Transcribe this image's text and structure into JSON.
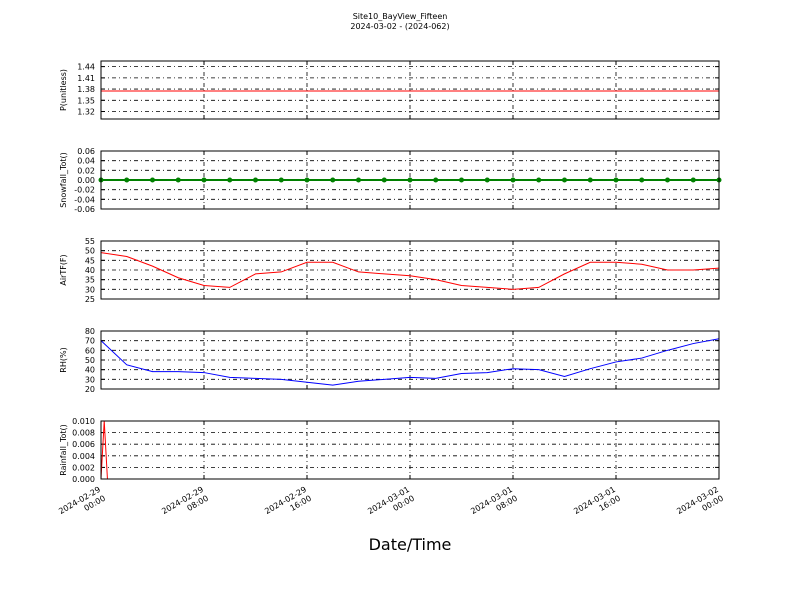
{
  "chart_data": [
    {
      "type": "line",
      "title": "Site10_BayView_Fifteen",
      "subtitle": "2024-03-02 - (2024-062)",
      "y_label": "P(unitless)",
      "color": "#ff0000",
      "grid": true,
      "x": [
        "2024-02-29 00:00",
        "2024-02-29 02:00",
        "2024-02-29 04:00",
        "2024-02-29 06:00",
        "2024-02-29 08:00",
        "2024-02-29 10:00",
        "2024-02-29 12:00",
        "2024-02-29 14:00",
        "2024-02-29 16:00",
        "2024-02-29 18:00",
        "2024-02-29 20:00",
        "2024-02-29 22:00",
        "2024-03-01 00:00",
        "2024-03-01 02:00",
        "2024-03-01 04:00",
        "2024-03-01 06:00",
        "2024-03-01 08:00",
        "2024-03-01 10:00",
        "2024-03-01 12:00",
        "2024-03-01 14:00",
        "2024-03-01 16:00",
        "2024-03-01 18:00",
        "2024-03-01 20:00",
        "2024-03-01 22:00",
        "2024-03-02 00:00"
      ],
      "values": [
        1.375,
        1.375,
        1.375,
        1.375,
        1.375,
        1.375,
        1.375,
        1.375,
        1.375,
        1.375,
        1.375,
        1.375,
        1.375,
        1.375,
        1.375,
        1.375,
        1.375,
        1.375,
        1.375,
        1.375,
        1.375,
        1.375,
        1.375,
        1.375,
        1.375
      ],
      "xlim": [
        "2024-02-29 00:00",
        "2024-03-02 00:00"
      ],
      "xticks": [
        "2024-02-29 00:00",
        "2024-02-29 08:00",
        "2024-02-29 16:00",
        "2024-03-01 00:00",
        "2024-03-01 08:00",
        "2024-03-01 16:00",
        "2024-03-02 00:00"
      ],
      "ylim": [
        1.3,
        1.455
      ],
      "yticks": [
        1.32,
        1.35,
        1.38,
        1.41,
        1.44
      ]
    },
    {
      "type": "line",
      "y_label": "Snowfall_Tot()",
      "color": "#008000",
      "marker": "o",
      "grid": true,
      "x": [
        "2024-02-29 00:00",
        "2024-02-29 02:00",
        "2024-02-29 04:00",
        "2024-02-29 06:00",
        "2024-02-29 08:00",
        "2024-02-29 10:00",
        "2024-02-29 12:00",
        "2024-02-29 14:00",
        "2024-02-29 16:00",
        "2024-02-29 18:00",
        "2024-02-29 20:00",
        "2024-02-29 22:00",
        "2024-03-01 00:00",
        "2024-03-01 02:00",
        "2024-03-01 04:00",
        "2024-03-01 06:00",
        "2024-03-01 08:00",
        "2024-03-01 10:00",
        "2024-03-01 12:00",
        "2024-03-01 14:00",
        "2024-03-01 16:00",
        "2024-03-01 18:00",
        "2024-03-01 20:00",
        "2024-03-01 22:00",
        "2024-03-02 00:00"
      ],
      "values": [
        0,
        0,
        0,
        0,
        0,
        0,
        0,
        0,
        0,
        0,
        0,
        0,
        0,
        0,
        0,
        0,
        0,
        0,
        0,
        0,
        0,
        0,
        0,
        0,
        0
      ],
      "xlim": [
        "2024-02-29 00:00",
        "2024-03-02 00:00"
      ],
      "xticks": [
        "2024-02-29 00:00",
        "2024-02-29 08:00",
        "2024-02-29 16:00",
        "2024-03-01 00:00",
        "2024-03-01 08:00",
        "2024-03-01 16:00",
        "2024-03-02 00:00"
      ],
      "ylim": [
        -0.06,
        0.06
      ],
      "yticks": [
        -0.06,
        -0.04,
        -0.02,
        {
          "value": 0,
          "label": "0.00"
        },
        0.02,
        0.04,
        0.06
      ]
    },
    {
      "type": "line",
      "y_label": "AirTF(F)",
      "color": "#ff0000",
      "grid": true,
      "x": [
        "2024-02-29 00:00",
        "2024-02-29 02:00",
        "2024-02-29 04:00",
        "2024-02-29 06:00",
        "2024-02-29 08:00",
        "2024-02-29 10:00",
        "2024-02-29 12:00",
        "2024-02-29 14:00",
        "2024-02-29 16:00",
        "2024-02-29 18:00",
        "2024-02-29 20:00",
        "2024-02-29 22:00",
        "2024-03-01 00:00",
        "2024-03-01 02:00",
        "2024-03-01 04:00",
        "2024-03-01 06:00",
        "2024-03-01 08:00",
        "2024-03-01 10:00",
        "2024-03-01 12:00",
        "2024-03-01 14:00",
        "2024-03-01 16:00",
        "2024-03-01 18:00",
        "2024-03-01 20:00",
        "2024-03-01 22:00",
        "2024-03-02 00:00"
      ],
      "values": [
        49,
        47,
        42,
        36,
        32,
        31,
        38,
        39,
        44,
        44,
        39,
        38,
        37,
        35,
        32,
        31,
        30,
        31,
        38,
        44,
        44,
        43,
        40,
        40,
        41
      ],
      "xlim": [
        "2024-02-29 00:00",
        "2024-03-02 00:00"
      ],
      "xticks": [
        "2024-02-29 00:00",
        "2024-02-29 08:00",
        "2024-02-29 16:00",
        "2024-03-01 00:00",
        "2024-03-01 08:00",
        "2024-03-01 16:00",
        "2024-03-02 00:00"
      ],
      "ylim": [
        25,
        55
      ],
      "yticks": [
        25,
        30,
        35,
        40,
        45,
        50,
        55
      ]
    },
    {
      "type": "line",
      "y_label": "RH(%)",
      "color": "#0000ff",
      "grid": true,
      "x": [
        "2024-02-29 00:00",
        "2024-02-29 02:00",
        "2024-02-29 04:00",
        "2024-02-29 06:00",
        "2024-02-29 08:00",
        "2024-02-29 10:00",
        "2024-02-29 12:00",
        "2024-02-29 14:00",
        "2024-02-29 16:00",
        "2024-02-29 18:00",
        "2024-02-29 20:00",
        "2024-02-29 22:00",
        "2024-03-01 00:00",
        "2024-03-01 02:00",
        "2024-03-01 04:00",
        "2024-03-01 06:00",
        "2024-03-01 08:00",
        "2024-03-01 10:00",
        "2024-03-01 12:00",
        "2024-03-01 14:00",
        "2024-03-01 16:00",
        "2024-03-01 18:00",
        "2024-03-01 20:00",
        "2024-03-01 22:00",
        "2024-03-02 00:00"
      ],
      "values": [
        70,
        45,
        38,
        38,
        37,
        32,
        31,
        30,
        27,
        24,
        28,
        30,
        32,
        31,
        36,
        37,
        41,
        40,
        33,
        41,
        48,
        52,
        60,
        67,
        72
      ],
      "xlim": [
        "2024-02-29 00:00",
        "2024-03-02 00:00"
      ],
      "xticks": [
        "2024-02-29 00:00",
        "2024-02-29 08:00",
        "2024-02-29 16:00",
        "2024-03-01 00:00",
        "2024-03-01 08:00",
        "2024-03-01 16:00",
        "2024-03-02 00:00"
      ],
      "ylim": [
        20,
        80
      ],
      "yticks": [
        20,
        30,
        40,
        50,
        60,
        70,
        80
      ]
    },
    {
      "type": "line",
      "y_label": "Rainfall_Tot()",
      "x_label": "Date/Time",
      "color": "#ff0000",
      "grid": true,
      "x": [
        "2024-02-29 00:00",
        "2024-02-29 00:15",
        "2024-02-29 00:30",
        "2024-03-02 00:00"
      ],
      "values": [
        0,
        0.01,
        0,
        0
      ],
      "xlim": [
        "2024-02-29 00:00",
        "2024-03-02 00:00"
      ],
      "xticks": [
        "2024-02-29 00:00",
        "2024-02-29 08:00",
        "2024-02-29 16:00",
        "2024-03-01 00:00",
        "2024-03-01 08:00",
        "2024-03-01 16:00",
        "2024-03-02 00:00"
      ],
      "ylim": [
        0,
        0.01
      ],
      "yticks": [
        {
          "value": 0,
          "label": "0.000"
        },
        {
          "value": 0.002,
          "label": "0.002"
        },
        {
          "value": 0.004,
          "label": "0.004"
        },
        {
          "value": 0.006,
          "label": "0.006"
        },
        {
          "value": 0.008,
          "label": "0.008"
        },
        {
          "value": 0.01,
          "label": "0.010"
        }
      ]
    }
  ]
}
